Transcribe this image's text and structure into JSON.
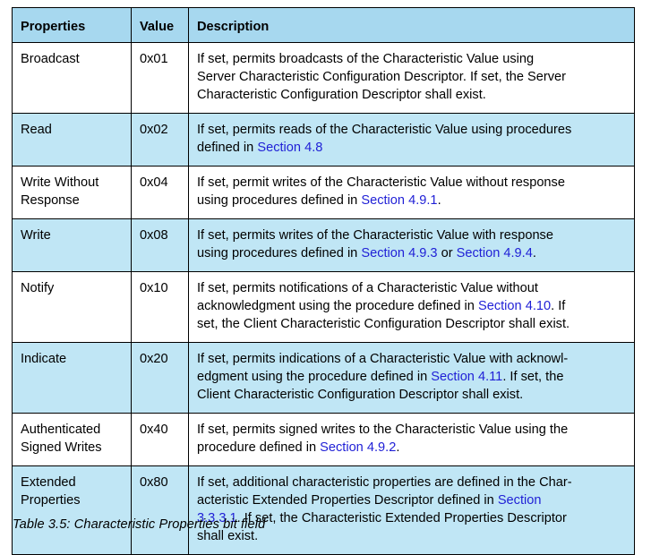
{
  "table": {
    "headers": [
      "Properties",
      "Value",
      "Description"
    ],
    "rows": [
      {
        "property_lines": [
          "Broadcast"
        ],
        "value": "0x01",
        "desc_lines": [
          [
            {
              "t": "If set, permits broadcasts of the Characteristic Value using"
            }
          ],
          [
            {
              "t": "Server Characteristic Configuration Descriptor. If set, the Server"
            }
          ],
          [
            {
              "t": "Characteristic Configuration Descriptor shall exist."
            }
          ]
        ]
      },
      {
        "property_lines": [
          "Read"
        ],
        "value": "0x02",
        "desc_lines": [
          [
            {
              "t": "If set, permits reads of the Characteristic Value using procedures"
            }
          ],
          [
            {
              "t": "defined in "
            },
            {
              "t": "Section 4.8",
              "link": true
            }
          ]
        ]
      },
      {
        "property_lines": [
          "Write Without",
          "Response"
        ],
        "value": "0x04",
        "desc_lines": [
          [
            {
              "t": "If set, permit writes of the Characteristic Value without response"
            }
          ],
          [
            {
              "t": "using procedures defined in "
            },
            {
              "t": "Section 4.9.1",
              "link": true
            },
            {
              "t": "."
            }
          ]
        ]
      },
      {
        "property_lines": [
          "Write"
        ],
        "value": "0x08",
        "desc_lines": [
          [
            {
              "t": "If set, permits writes of the Characteristic Value with response"
            }
          ],
          [
            {
              "t": "using procedures defined in "
            },
            {
              "t": "Section 4.9.3",
              "link": true
            },
            {
              "t": " or "
            },
            {
              "t": "Section 4.9.4",
              "link": true
            },
            {
              "t": "."
            }
          ]
        ]
      },
      {
        "property_lines": [
          "Notify"
        ],
        "value": "0x10",
        "desc_lines": [
          [
            {
              "t": "If set, permits notifications of a Characteristic Value without"
            }
          ],
          [
            {
              "t": "acknowledgment using the procedure defined in "
            },
            {
              "t": "Section 4.10",
              "link": true
            },
            {
              "t": ". If"
            }
          ],
          [
            {
              "t": "set, the Client Characteristic Configuration Descriptor shall exist."
            }
          ]
        ]
      },
      {
        "property_lines": [
          "Indicate"
        ],
        "value": "0x20",
        "desc_lines": [
          [
            {
              "t": "If set, permits indications of a Characteristic Value with acknowl-"
            }
          ],
          [
            {
              "t": "edgment using the procedure defined in "
            },
            {
              "t": "Section 4.11",
              "link": true
            },
            {
              "t": ". If set, the"
            }
          ],
          [
            {
              "t": "Client Characteristic Configuration Descriptor shall exist."
            }
          ]
        ]
      },
      {
        "property_lines": [
          "Authenticated",
          "Signed Writes"
        ],
        "value": "0x40",
        "desc_lines": [
          [
            {
              "t": "If set, permits signed writes to the Characteristic Value using the"
            }
          ],
          [
            {
              "t": "procedure defined in "
            },
            {
              "t": "Section 4.9.2",
              "link": true
            },
            {
              "t": "."
            }
          ]
        ]
      },
      {
        "property_lines": [
          "Extended",
          "Properties"
        ],
        "value": "0x80",
        "desc_lines": [
          [
            {
              "t": "If set, additional characteristic properties are defined in the Char-"
            }
          ],
          [
            {
              "t": "acteristic Extended Properties Descriptor defined in "
            },
            {
              "t": "Section",
              "link": true
            }
          ],
          [
            {
              "t": "3.3.3.1",
              "link": true
            },
            {
              "t": ". If set, the Characteristic Extended Properties Descriptor"
            }
          ],
          [
            {
              "t": "shall exist."
            }
          ]
        ]
      }
    ]
  },
  "caption": "Table 3.5:  Characteristic Properties bit field",
  "colors": {
    "header_bg": "#a7d8ef",
    "shaded_row_bg": "#c0e6f5",
    "link": "#1f1fd6"
  }
}
